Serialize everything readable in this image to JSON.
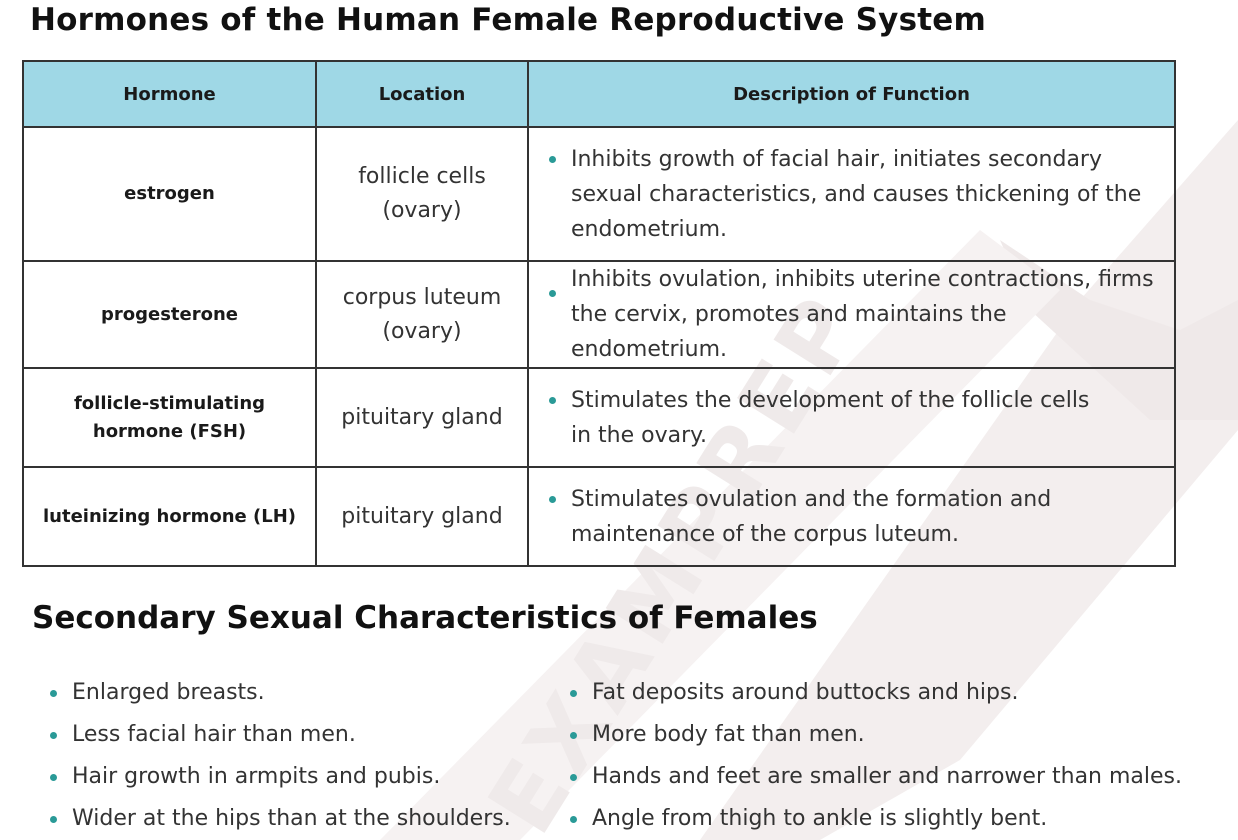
{
  "page_title": "Hormones of the Human Female Reproductive System",
  "table": {
    "headers": [
      "Hormone",
      "Location",
      "Description of Function"
    ],
    "rows": [
      {
        "hormone": "estrogen",
        "location": "follicle cells (ovary)",
        "function": "Inhibits growth of facial hair, initiates secondary sexual characteristics, and causes thickening of the endometrium."
      },
      {
        "hormone": "progesterone",
        "location": "corpus luteum (ovary)",
        "function": "Inhibits ovulation, inhibits uterine contractions, firms the cervix, promotes and maintains the endometrium."
      },
      {
        "hormone": "follicle-stimulating hormone (FSH)",
        "location": "pituitary gland",
        "function": "Stimulates the development of the follicle cells in the ovary."
      },
      {
        "hormone": "luteinizing hormone (LH)",
        "location": "pituitary gland",
        "function": "Stimulates ovulation and the formation and maintenance of the corpus luteum."
      }
    ]
  },
  "section_title": "Secondary Sexual Characteristics of Females",
  "characteristics": {
    "left": [
      "Enlarged breasts.",
      "Less facial hair than men.",
      "Hair growth in armpits and pubis.",
      "Wider at the hips than at the shoulders."
    ],
    "right": [
      "Fat deposits around buttocks and hips.",
      "More body fat than men.",
      "Hands and feet are smaller and narrower than males.",
      "Angle from thigh to ankle is slightly bent."
    ]
  },
  "colors": {
    "header_bg": "#9fd8e6",
    "bullet": "#2a9a97",
    "watermark": "#f3efef"
  },
  "watermark": {
    "text": "EXAMPREP",
    "icon": "watermark-logo-icon"
  }
}
